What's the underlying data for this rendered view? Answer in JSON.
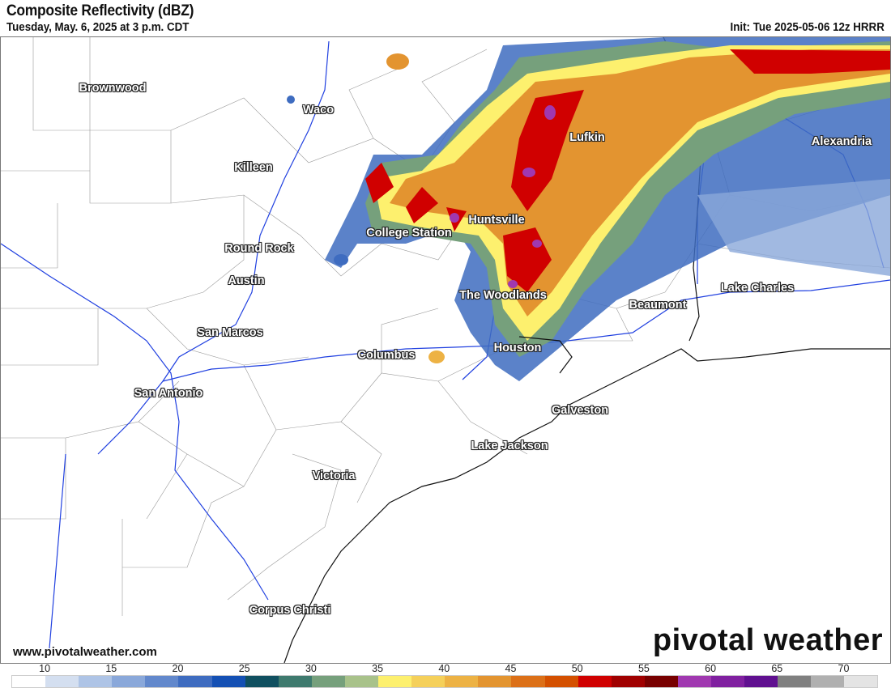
{
  "header": {
    "title": "Composite Reflectivity (dBZ)",
    "valid_time": "Tuesday, May. 6, 2025 at 3 p.m. CDT",
    "init": "Init: Tue 2025-05-06 12z HRRR"
  },
  "cities": [
    "Brownwood",
    "Waco",
    "Killeen",
    "Lufkin",
    "Alexandria",
    "Huntsville",
    "College Station",
    "Round Rock",
    "Austin",
    "The Woodlands",
    "Beaumont",
    "Lake Charles",
    "San Marcos",
    "Columbus",
    "Houston",
    "San Antonio",
    "Galveston",
    "Lake Jackson",
    "Victoria",
    "Corpus Christi"
  ],
  "footer": {
    "website": "www.pivotalweather.com",
    "brand": "pivotal weather"
  },
  "colorbar": {
    "unit": "dBZ",
    "labels": [
      "10",
      "15",
      "20",
      "25",
      "30",
      "35",
      "40",
      "45",
      "50",
      "55",
      "60",
      "65",
      "70"
    ],
    "colors": [
      "#ffffff",
      "#d4dff0",
      "#aec4e6",
      "#8aa8da",
      "#6288cc",
      "#3e6cc0",
      "#1450b4",
      "#105060",
      "#3e7a6e",
      "#76a07c",
      "#a8c28a",
      "#fdf06e",
      "#f5d05a",
      "#edb244",
      "#e39430",
      "#dc7018",
      "#d45000",
      "#d00000",
      "#a00000",
      "#780000",
      "#a038b0",
      "#8020a0",
      "#601090",
      "#808080",
      "#b0b0b0",
      "#e4e4e4"
    ]
  }
}
